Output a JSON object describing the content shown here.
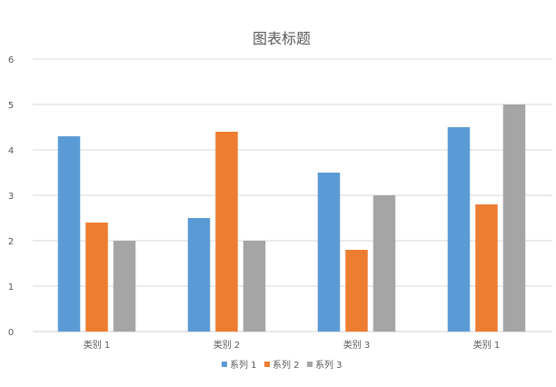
{
  "chart_data": {
    "type": "bar",
    "title": "图表标题",
    "categories": [
      "类别 1",
      "类别 2",
      "类别 3",
      "类别 1"
    ],
    "series": [
      {
        "name": "系列 1",
        "color": "#5B9BD5",
        "values": [
          4.3,
          2.5,
          3.5,
          4.5
        ]
      },
      {
        "name": "系列 2",
        "color": "#ED7D31",
        "values": [
          2.4,
          4.4,
          1.8,
          2.8
        ]
      },
      {
        "name": "系列 3",
        "color": "#A5A5A5",
        "values": [
          2.0,
          2.0,
          3.0,
          5.0
        ]
      }
    ],
    "ylim": [
      0,
      6
    ],
    "yticks": [
      "0",
      "1",
      "2",
      "3",
      "4",
      "5",
      "6"
    ],
    "grid": true,
    "legend": "bottom",
    "xlabel": "",
    "ylabel": ""
  }
}
